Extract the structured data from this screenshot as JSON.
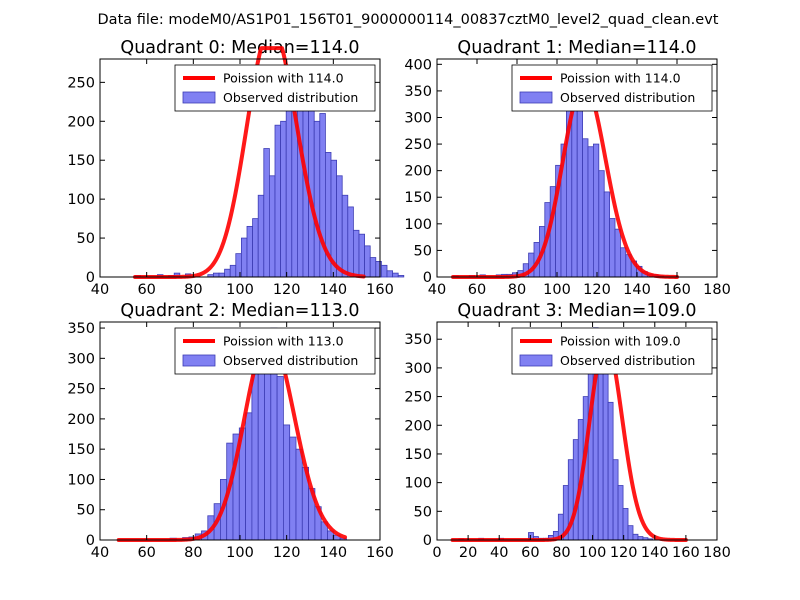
{
  "figure": {
    "suptitle": "Data file: modeM0/AS1P01_156T01_9000000114_00837cztM0_level2_quad_clean.evt"
  },
  "colors": {
    "bar_fill": "#8080f2",
    "bar_edge": "#3c3cb4",
    "curve": "#ff0000",
    "axes": "#000000",
    "background": "#ffffff"
  },
  "chart_data": [
    {
      "type": "bar",
      "title": "Quadrant 0: Median=114.0",
      "xlim": [
        40,
        160
      ],
      "ylim": [
        0,
        280
      ],
      "xticks": [
        40,
        60,
        80,
        100,
        120,
        140,
        160
      ],
      "yticks": [
        0,
        50,
        100,
        150,
        200,
        250
      ],
      "bin_width": 2.4,
      "hist_start": 55,
      "hist_values": [
        2,
        0,
        0,
        0,
        3,
        0,
        2,
        5,
        0,
        4,
        0,
        0,
        0,
        3,
        5,
        5,
        10,
        15,
        30,
        50,
        65,
        75,
        105,
        165,
        130,
        195,
        200,
        230,
        240,
        265,
        245,
        260,
        200,
        210,
        160,
        150,
        130,
        105,
        90,
        60,
        55,
        40,
        25,
        20,
        15,
        8,
        5,
        2
      ],
      "curve": {
        "mu": 114.0,
        "x_start": 55,
        "x_end": 153
      },
      "legend": {
        "position": "upper right",
        "entries": [
          "Poission with 114.0",
          "Observed distribution"
        ]
      }
    },
    {
      "type": "bar",
      "title": "Quadrant 1: Median=114.0",
      "xlim": [
        40,
        180
      ],
      "ylim": [
        0,
        410
      ],
      "xticks": [
        40,
        60,
        80,
        100,
        120,
        140,
        160,
        180
      ],
      "yticks": [
        0,
        50,
        100,
        150,
        200,
        250,
        300,
        350,
        400
      ],
      "bin_width": 2.7,
      "hist_start": 48,
      "hist_values": [
        2,
        0,
        0,
        3,
        0,
        4,
        0,
        0,
        4,
        5,
        5,
        8,
        12,
        25,
        45,
        65,
        95,
        140,
        170,
        210,
        250,
        340,
        385,
        345,
        260,
        245,
        250,
        200,
        160,
        110,
        90,
        55,
        42,
        30,
        20,
        10,
        5,
        4,
        2
      ],
      "curve": {
        "mu": 114.0,
        "x_start": 48,
        "x_end": 160
      },
      "legend": {
        "position": "upper right",
        "entries": [
          "Poission with 114.0",
          "Observed distribution"
        ]
      }
    },
    {
      "type": "bar",
      "title": "Quadrant 2: Median=113.0",
      "xlim": [
        40,
        160
      ],
      "ylim": [
        0,
        360
      ],
      "xticks": [
        40,
        60,
        80,
        100,
        120,
        140,
        160
      ],
      "yticks": [
        0,
        50,
        100,
        150,
        200,
        250,
        300,
        350
      ],
      "bin_width": 2.7,
      "hist_start": 70,
      "hist_values": [
        3,
        0,
        4,
        5,
        10,
        15,
        40,
        60,
        100,
        160,
        175,
        185,
        210,
        330,
        280,
        300,
        350,
        270,
        190,
        170,
        150,
        120,
        85,
        55,
        30,
        15,
        8,
        3
      ],
      "curve": {
        "mu": 113.0,
        "x_start": 48,
        "x_end": 145
      },
      "legend": {
        "position": "upper right",
        "entries": [
          "Poission with 113.0",
          "Observed distribution"
        ]
      }
    },
    {
      "type": "bar",
      "title": "Quadrant 3: Median=109.0",
      "xlim": [
        0,
        180
      ],
      "ylim": [
        0,
        380
      ],
      "xticks": [
        0,
        20,
        40,
        60,
        80,
        100,
        120,
        140,
        160,
        180
      ],
      "yticks": [
        0,
        50,
        100,
        150,
        200,
        250,
        300,
        350
      ],
      "bin_width": 3.2,
      "hist_start": 14,
      "hist_values": [
        2,
        0,
        0,
        0,
        3,
        0,
        0,
        0,
        3,
        0,
        0,
        0,
        0,
        0,
        13,
        6,
        3,
        3,
        8,
        15,
        45,
        95,
        140,
        175,
        210,
        250,
        295,
        370,
        330,
        295,
        240,
        140,
        95,
        55,
        25,
        10,
        6,
        4,
        2
      ],
      "curve": {
        "mu": 109.0,
        "x_start": 10,
        "x_end": 160
      },
      "legend": {
        "position": "upper right",
        "entries": [
          "Poission with 109.0",
          "Observed distribution"
        ]
      }
    }
  ]
}
